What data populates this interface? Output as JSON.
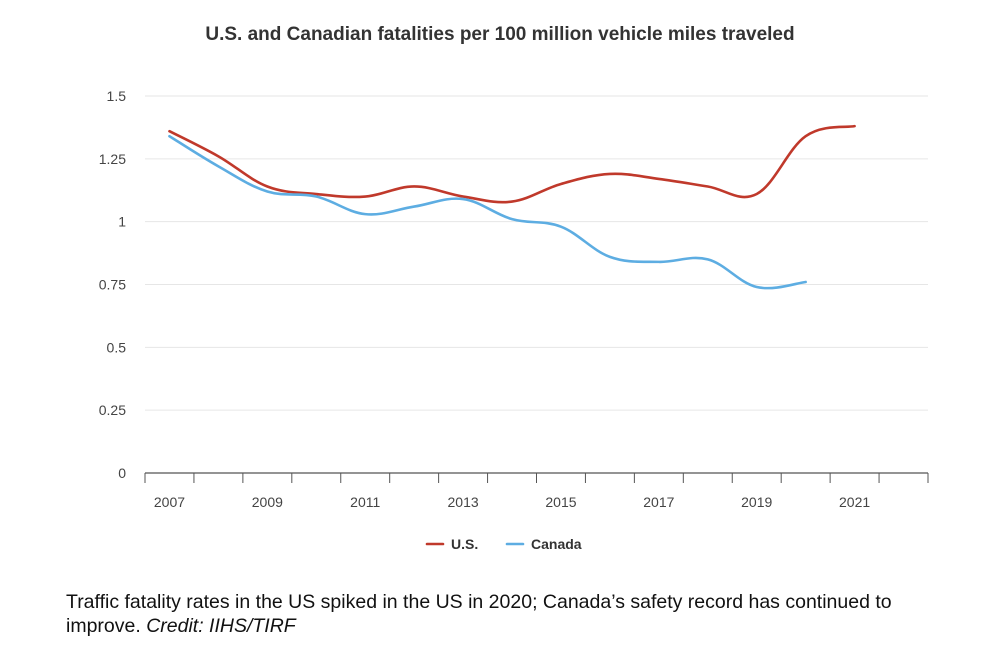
{
  "chart_data": {
    "type": "line",
    "title": "U.S. and Canadian fatalities per 100 million vehicle miles traveled",
    "xlabel": "",
    "ylabel": "",
    "x": [
      2007,
      2008,
      2009,
      2010,
      2011,
      2012,
      2013,
      2014,
      2015,
      2016,
      2017,
      2018,
      2019,
      2020,
      2021
    ],
    "x_tick_labels": [
      "2007",
      "2009",
      "2011",
      "2013",
      "2015",
      "2017",
      "2019",
      "2021"
    ],
    "y_tick_labels": [
      "0",
      "0.25",
      "0.5",
      "0.75",
      "1",
      "1.25",
      "1.5"
    ],
    "ylim": [
      0,
      1.5
    ],
    "xlim": [
      2006.5,
      2022.5
    ],
    "grid": true,
    "legend_position": "bottom-center",
    "series": [
      {
        "name": "U.S.",
        "color": "#c0392b",
        "values": [
          1.36,
          1.26,
          1.14,
          1.11,
          1.1,
          1.14,
          1.1,
          1.08,
          1.15,
          1.19,
          1.17,
          1.14,
          1.11,
          1.34,
          1.38
        ]
      },
      {
        "name": "Canada",
        "color": "#5dade2",
        "values": [
          1.34,
          1.22,
          1.12,
          1.1,
          1.03,
          1.06,
          1.09,
          1.01,
          0.98,
          0.86,
          0.84,
          0.85,
          0.74,
          0.76,
          null
        ]
      }
    ]
  },
  "caption": {
    "text": "Traffic fatality rates in the US spiked in the US in 2020; Canada’s safety record has continued to improve. ",
    "credit": "Credit: IIHS/TIRF"
  },
  "colors": {
    "grid": "#e6e6e6",
    "axis": "#555555"
  }
}
